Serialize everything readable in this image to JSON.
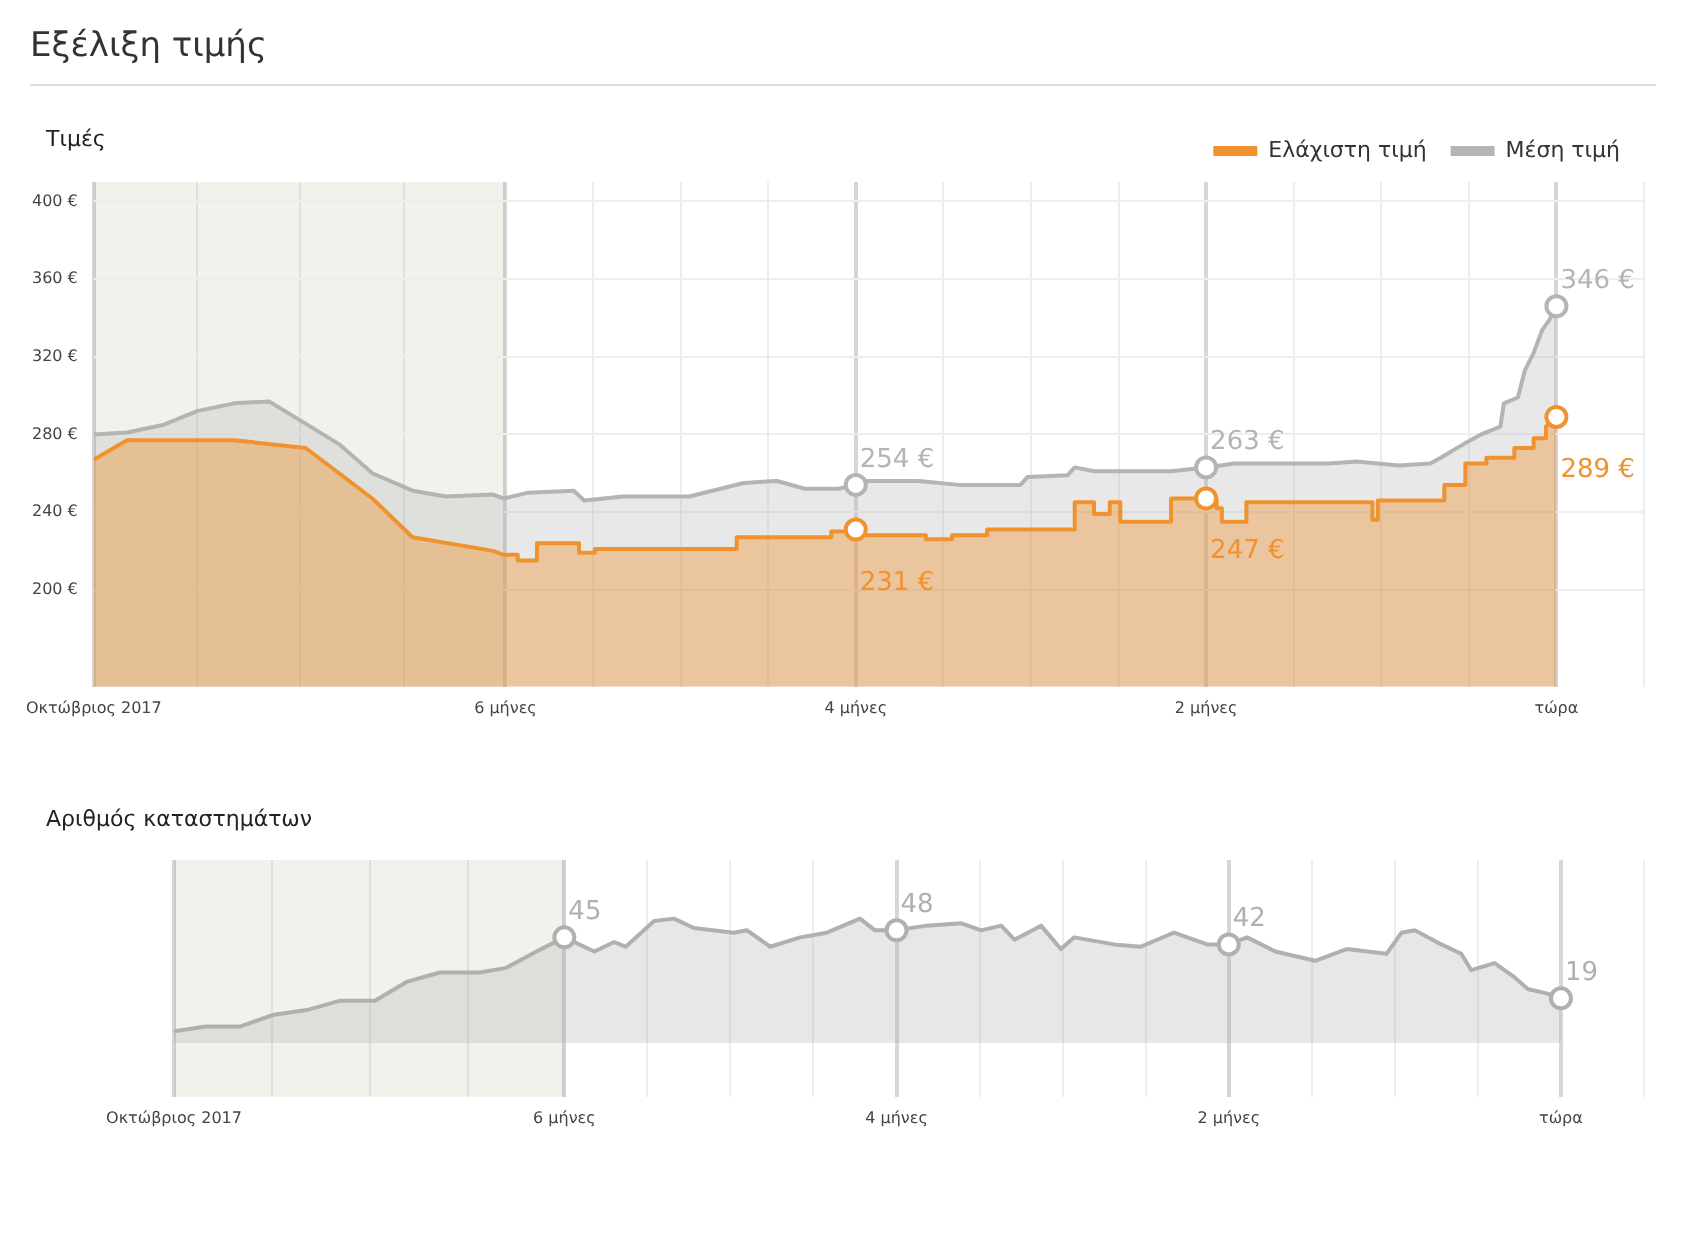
{
  "chart_data": [
    {
      "type": "area",
      "title": "Εξέλιξη τιμής",
      "subtitle": "Τιμές",
      "legend": "top right",
      "grid": true,
      "xlim": [
        -8.35,
        0.5
      ],
      "xticks": [
        {
          "value": -8.35,
          "label": "Οκτώβριος 2017"
        },
        {
          "value": -7.76,
          "label": null
        },
        {
          "value": -7.17,
          "label": null
        },
        {
          "value": -6.58,
          "label": null
        },
        {
          "value": -6,
          "label": "6 μήνες"
        },
        {
          "value": -5.5,
          "label": null
        },
        {
          "value": -5,
          "label": null
        },
        {
          "value": -4.5,
          "label": null
        },
        {
          "value": -4,
          "label": "4 μήνες"
        },
        {
          "value": -3.5,
          "label": null
        },
        {
          "value": -3,
          "label": null
        },
        {
          "value": -2.5,
          "label": null
        },
        {
          "value": -2,
          "label": "2 μήνες"
        },
        {
          "value": -1.5,
          "label": null
        },
        {
          "value": -1,
          "label": null
        },
        {
          "value": -0.5,
          "label": null
        },
        {
          "value": 0,
          "label": "τώρα"
        },
        {
          "value": 0.5,
          "label": null
        }
      ],
      "ylim": [
        150,
        410
      ],
      "yticks": [
        {
          "value": 200,
          "label": "200 €"
        },
        {
          "value": 240,
          "label": "240 €"
        },
        {
          "value": 280,
          "label": "280 €"
        },
        {
          "value": 320,
          "label": "320 €"
        },
        {
          "value": 360,
          "label": "360 €"
        },
        {
          "value": 400,
          "label": "400 €"
        }
      ],
      "bands": [
        {
          "axis": "x",
          "from": -8.35,
          "to": -6,
          "color": "#f0f0eb"
        }
      ],
      "series": [
        {
          "name": "Ελάχιστη τιμή",
          "type": "area",
          "color": "#f0922e",
          "x": [
            -8.35,
            -8.16,
            -7.76,
            -7.55,
            -7.14,
            -6.76,
            -6.53,
            -6.07,
            -6.01,
            -5.93,
            -5.93,
            -5.82,
            -5.82,
            -5.58,
            -5.58,
            -5.49,
            -5.49,
            -4.68,
            -4.68,
            -4.14,
            -4.14,
            -4,
            -4,
            -3.98,
            -3.98,
            -3.6,
            -3.6,
            -3.45,
            -3.45,
            -3.25,
            -3.25,
            -2.75,
            -2.75,
            -2.64,
            -2.64,
            -2.55,
            -2.55,
            -2.49,
            -2.49,
            -2.2,
            -2.2,
            -2,
            -1.94,
            -1.94,
            -1.91,
            -1.91,
            -1.77,
            -1.77,
            -1.05,
            -1.05,
            -1.02,
            -1.02,
            -0.64,
            -0.64,
            -0.52,
            -0.52,
            -0.4,
            -0.4,
            -0.24,
            -0.24,
            -0.13,
            -0.13,
            -0.06,
            -0.06,
            0
          ],
          "values": [
            267,
            277,
            277,
            277,
            273,
            247,
            227,
            220,
            218,
            218,
            215,
            215,
            224,
            224,
            219,
            219,
            221,
            221,
            227,
            227,
            230,
            230,
            231,
            231,
            228,
            228,
            226,
            226,
            228,
            228,
            231,
            231,
            245,
            245,
            239,
            239,
            245,
            245,
            235,
            235,
            247,
            247,
            247,
            242,
            242,
            235,
            235,
            245,
            245,
            236,
            236,
            246,
            246,
            254,
            254,
            265,
            265,
            268,
            268,
            273,
            273,
            278,
            278,
            284,
            289
          ]
        },
        {
          "name": "Μέση τιμή",
          "type": "area",
          "color": "#b4b4b4",
          "x": [
            -8.35,
            -8.16,
            -7.95,
            -7.76,
            -7.55,
            -7.35,
            -6.95,
            -6.76,
            -6.53,
            -6.34,
            -6.07,
            -6.01,
            -5.87,
            -5.61,
            -5.55,
            -5.33,
            -4.95,
            -4.64,
            -4.45,
            -4.29,
            -4.1,
            -4,
            -3.94,
            -3.64,
            -3.41,
            -3.06,
            -3.02,
            -2.79,
            -2.75,
            -2.64,
            -2.2,
            -2,
            -1.84,
            -1.3,
            -1.14,
            -0.9,
            -0.72,
            -0.66,
            -0.53,
            -0.43,
            -0.32,
            -0.3,
            -0.22,
            -0.18,
            -0.13,
            -0.08,
            -0.04,
            0
          ],
          "values": [
            280,
            281,
            285,
            292,
            296,
            297,
            275,
            260,
            251,
            248,
            249,
            247,
            250,
            251,
            246,
            248,
            248,
            255,
            256,
            252,
            252,
            254,
            256,
            256,
            254,
            254,
            258,
            259,
            263,
            261,
            261,
            263,
            265,
            265,
            266,
            264,
            265,
            268,
            275,
            280,
            284,
            296,
            299,
            313,
            322,
            334,
            339,
            346
          ]
        }
      ],
      "annotations": [
        {
          "text": "254 €",
          "x": -4,
          "y": 254
        },
        {
          "text": "231 €",
          "x": -4,
          "y": 231
        },
        {
          "text": "263 €",
          "x": -2,
          "y": 263
        },
        {
          "text": "247 €",
          "x": -2,
          "y": 247
        },
        {
          "text": "346 €",
          "x": 0,
          "y": 346
        },
        {
          "text": "289 €",
          "x": 0,
          "y": 289
        }
      ]
    },
    {
      "type": "area",
      "title": "Αριθμός καταστημάτων",
      "grid": "x",
      "tick_labels": "x",
      "xlim": [
        -8.35,
        0.5
      ],
      "xticks": [
        {
          "value": -8.35,
          "label": "Οκτώβριος 2017"
        },
        {
          "value": -7.76,
          "label": null
        },
        {
          "value": -7.17,
          "label": null
        },
        {
          "value": -6.58,
          "label": null
        },
        {
          "value": -6,
          "label": "6 μήνες"
        },
        {
          "value": -5.5,
          "label": null
        },
        {
          "value": -5,
          "label": null
        },
        {
          "value": -4.5,
          "label": null
        },
        {
          "value": -4,
          "label": "4 μήνες"
        },
        {
          "value": -3.5,
          "label": null
        },
        {
          "value": -3,
          "label": null
        },
        {
          "value": -2.5,
          "label": null
        },
        {
          "value": -2,
          "label": "2 μήνες"
        },
        {
          "value": -1.5,
          "label": null
        },
        {
          "value": -1,
          "label": null
        },
        {
          "value": -0.5,
          "label": null
        },
        {
          "value": 0,
          "label": "τώρα"
        },
        {
          "value": 0.5,
          "label": null
        }
      ],
      "bands": [
        {
          "axis": "x",
          "from": -8.35,
          "to": -6,
          "color": "#f0f0eb"
        }
      ],
      "series": [
        {
          "type": "area",
          "color": "#b0b0b0",
          "x": [
            -8.35,
            -8.16,
            -7.95,
            -7.75,
            -7.55,
            -7.35,
            -7.14,
            -6.95,
            -6.75,
            -6.51,
            -6.35,
            -6.14,
            -6,
            -5.82,
            -5.7,
            -5.63,
            -5.46,
            -5.34,
            -5.22,
            -4.98,
            -4.9,
            -4.76,
            -4.58,
            -4.42,
            -4.22,
            -4.13,
            -4,
            -3.82,
            -3.61,
            -3.49,
            -3.37,
            -3.29,
            -3.13,
            -3.01,
            -2.93,
            -2.69,
            -2.53,
            -2.33,
            -2.13,
            -2,
            -1.89,
            -1.72,
            -1.48,
            -1.29,
            -1.05,
            -0.96,
            -0.88,
            -0.72,
            -0.6,
            -0.54,
            -0.4,
            -0.28,
            -0.2,
            -0.08,
            0
          ],
          "values": [
            5,
            7,
            7,
            12,
            14,
            18,
            18,
            26,
            30,
            30,
            32,
            40,
            45,
            39,
            43,
            41,
            52,
            53,
            49,
            47,
            48,
            41,
            45,
            47,
            53,
            48,
            48,
            50,
            51,
            48,
            50,
            44,
            50,
            40,
            45,
            42,
            41,
            47,
            42,
            42,
            45,
            39,
            35,
            40,
            38,
            47,
            48,
            42,
            38,
            31,
            34,
            28,
            23,
            21,
            19
          ],
          "value_labels": [
            null,
            null,
            null,
            null,
            null,
            null,
            null,
            null,
            null,
            null,
            null,
            null,
            "45",
            null,
            null,
            null,
            null,
            null,
            null,
            null,
            null,
            null,
            null,
            null,
            null,
            null,
            "48",
            null,
            null,
            null,
            null,
            null,
            null,
            null,
            null,
            null,
            null,
            null,
            null,
            "42",
            null,
            null,
            null,
            null,
            null,
            null,
            null,
            null,
            null,
            null,
            null,
            null,
            null,
            null,
            "19"
          ]
        }
      ],
      "ylim": [
        -23,
        78
      ]
    }
  ]
}
